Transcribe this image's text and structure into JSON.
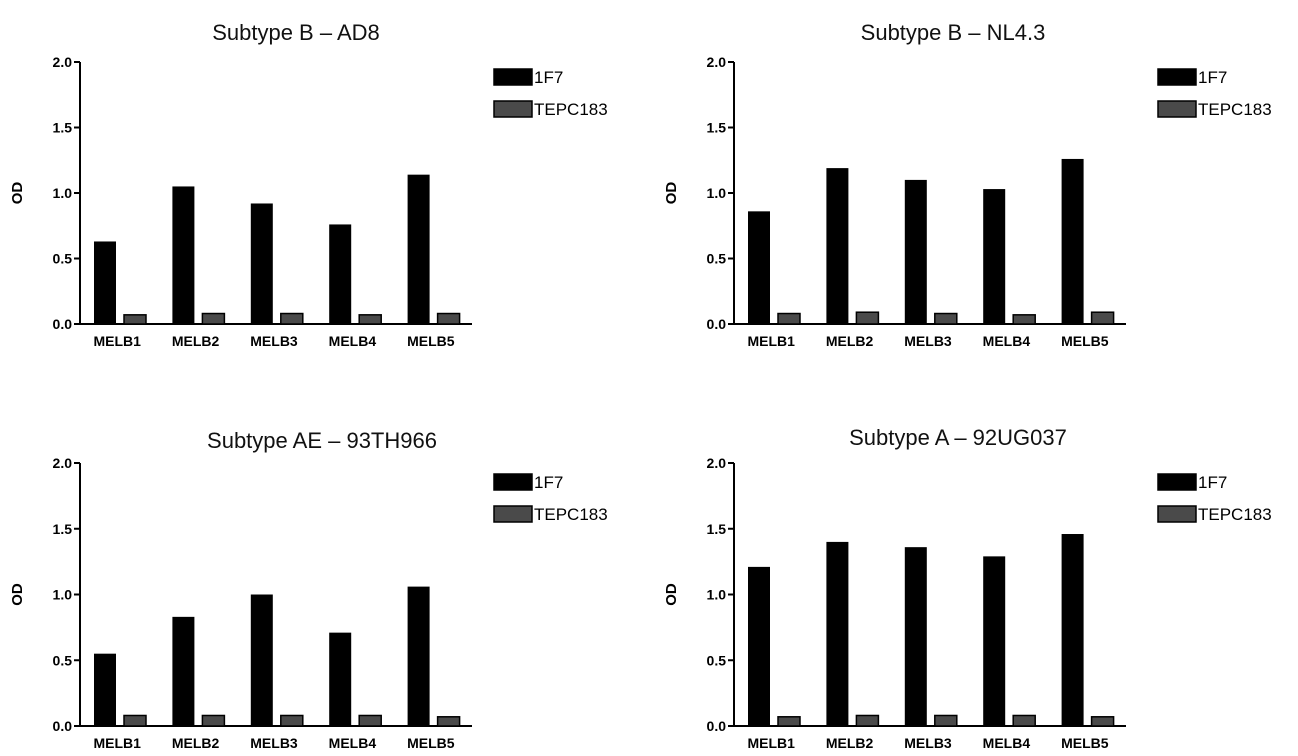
{
  "chart_data": [
    {
      "type": "bar",
      "title": "Subtype B – AD8",
      "ylabel": "OD",
      "ylim": [
        0,
        2.0
      ],
      "yticks": [
        "0.0",
        "0.5",
        "1.0",
        "1.5",
        "2.0"
      ],
      "categories": [
        "MELB1",
        "MELB2",
        "MELB3",
        "MELB4",
        "MELB5"
      ],
      "series": [
        {
          "name": "1F7",
          "values": [
            0.63,
            1.05,
            0.92,
            0.76,
            1.14
          ],
          "color": "#000000"
        },
        {
          "name": "TEPC183",
          "values": [
            0.07,
            0.08,
            0.08,
            0.07,
            0.08
          ],
          "color": "#4a4a4a"
        }
      ],
      "legend": "top-right",
      "grid": false
    },
    {
      "type": "bar",
      "title": "Subtype B – NL4.3",
      "ylabel": "OD",
      "ylim": [
        0,
        2.0
      ],
      "yticks": [
        "0.0",
        "0.5",
        "1.0",
        "1.5",
        "2.0"
      ],
      "categories": [
        "MELB1",
        "MELB2",
        "MELB3",
        "MELB4",
        "MELB5"
      ],
      "series": [
        {
          "name": "1F7",
          "values": [
            0.86,
            1.19,
            1.1,
            1.03,
            1.26
          ],
          "color": "#000000"
        },
        {
          "name": "TEPC183",
          "values": [
            0.08,
            0.09,
            0.08,
            0.07,
            0.09
          ],
          "color": "#4a4a4a"
        }
      ],
      "legend": "top-right",
      "grid": false
    },
    {
      "type": "bar",
      "title": "Subtype AE – 93TH966",
      "ylabel": "OD",
      "ylim": [
        0,
        2.0
      ],
      "yticks": [
        "0.0",
        "0.5",
        "1.0",
        "1.5",
        "2.0"
      ],
      "categories": [
        "MELB1",
        "MELB2",
        "MELB3",
        "MELB4",
        "MELB5"
      ],
      "series": [
        {
          "name": "1F7",
          "values": [
            0.55,
            0.83,
            1.0,
            0.71,
            1.06
          ],
          "color": "#000000"
        },
        {
          "name": "TEPC183",
          "values": [
            0.08,
            0.08,
            0.08,
            0.08,
            0.07
          ],
          "color": "#4a4a4a"
        }
      ],
      "legend": "top-right",
      "grid": false
    },
    {
      "type": "bar",
      "title": "Subtype A – 92UG037",
      "ylabel": "OD",
      "ylim": [
        0,
        2.0
      ],
      "yticks": [
        "0.0",
        "0.5",
        "1.0",
        "1.5",
        "2.0"
      ],
      "categories": [
        "MELB1",
        "MELB2",
        "MELB3",
        "MELB4",
        "MELB5"
      ],
      "series": [
        {
          "name": "1F7",
          "values": [
            1.21,
            1.4,
            1.36,
            1.29,
            1.46
          ],
          "color": "#000000"
        },
        {
          "name": "TEPC183",
          "values": [
            0.07,
            0.08,
            0.08,
            0.08,
            0.07
          ],
          "color": "#4a4a4a"
        }
      ],
      "legend": "top-right",
      "grid": false
    }
  ]
}
